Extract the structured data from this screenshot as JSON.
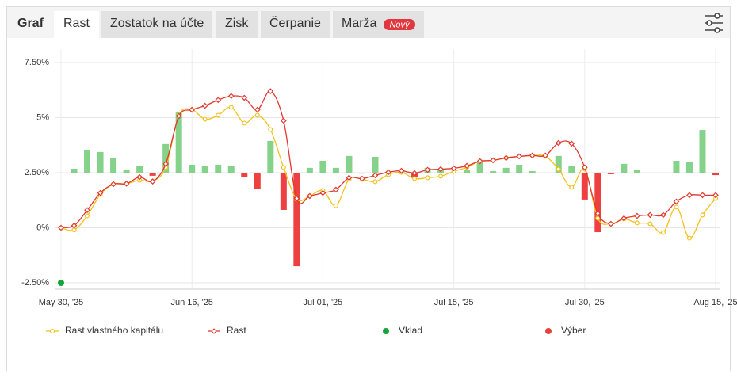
{
  "tabs": [
    "Graf",
    "Rast",
    "Zostatok na účte",
    "Zisk",
    "Čerpanie",
    "Marža"
  ],
  "badge": "Nový",
  "chart_data": {
    "type": "line",
    "categories": [
      "May 30, '25",
      null,
      null,
      null,
      null,
      null,
      null,
      null,
      null,
      null,
      "Jun 16, '25",
      null,
      null,
      null,
      null,
      null,
      null,
      null,
      null,
      null,
      "Jul 01, '25",
      null,
      null,
      null,
      null,
      null,
      null,
      null,
      null,
      null,
      "Jul 15, '25",
      null,
      null,
      null,
      null,
      null,
      null,
      null,
      null,
      null,
      "Jul 30, '25",
      null,
      null,
      null,
      null,
      null,
      null,
      null,
      null,
      null,
      "Aug 15, '25"
    ],
    "ylim": [
      -2.5,
      7.5
    ],
    "yticks": [
      {
        "value": -2.5,
        "label": "-2.50%"
      },
      {
        "value": 0,
        "label": "0%"
      },
      {
        "value": 2.5,
        "label": "2.50%"
      },
      {
        "value": 5,
        "label": "5%"
      },
      {
        "value": 7.5,
        "label": "7.50%"
      }
    ],
    "y2lim": [
      -5,
      5
    ],
    "grid": true,
    "series": [
      {
        "name": "Rast vlastného kapitálu",
        "color": "#f2c21b",
        "marker": "circle",
        "values": [
          0,
          -0.1,
          0.54,
          1.51,
          1.98,
          2.0,
          2.16,
          2.12,
          2.74,
          5.11,
          5.36,
          4.93,
          5.11,
          5.47,
          4.75,
          5.11,
          4.46,
          2.74,
          1.3,
          1.44,
          1.69,
          1.0,
          2.2,
          2.2,
          2.09,
          2.41,
          2.52,
          2.23,
          2.27,
          2.34,
          2.56,
          2.74,
          3.02,
          3.06,
          3.17,
          3.24,
          3.28,
          3.24,
          2.66,
          1.84,
          2.66,
          0.43,
          0.18,
          0.4,
          0.22,
          0.18,
          -0.22,
          0.94,
          -0.47,
          0.58,
          1.33
        ]
      },
      {
        "name": "Rast",
        "color": "#e0382f",
        "marker": "diamond",
        "values": [
          0,
          0.1,
          0.8,
          1.58,
          1.98,
          2.0,
          2.3,
          2.1,
          2.9,
          5.07,
          5.36,
          5.54,
          5.8,
          5.98,
          5.9,
          5.36,
          6.2,
          4.86,
          1.33,
          1.44,
          1.58,
          1.73,
          2.27,
          2.23,
          2.38,
          2.52,
          2.59,
          2.48,
          2.63,
          2.66,
          2.7,
          2.81,
          3.02,
          3.06,
          3.17,
          3.24,
          3.28,
          3.28,
          3.85,
          3.82,
          2.74,
          0.65,
          0.18,
          0.43,
          0.54,
          0.58,
          0.58,
          1.19,
          1.48,
          1.48,
          1.48
        ]
      },
      {
        "name": "Vklad",
        "color": "#13a538",
        "marker": "dot",
        "values": [
          -2.5,
          null,
          null,
          null,
          null,
          null,
          null,
          null,
          null,
          null,
          null,
          null,
          null,
          null,
          null,
          null,
          null,
          null,
          null,
          null,
          null,
          null,
          null,
          null,
          null,
          null,
          null,
          null,
          null,
          null,
          null,
          null,
          null,
          null,
          null,
          null,
          null,
          null,
          null,
          null,
          null,
          null,
          null,
          null,
          null,
          null,
          null,
          null,
          null,
          null,
          null
        ]
      },
      {
        "name": "Výber",
        "color": "#e8413a",
        "marker": "dot",
        "values": [
          null,
          null,
          null,
          null,
          null,
          null,
          null,
          null,
          null,
          null,
          null,
          null,
          null,
          null,
          null,
          null,
          null,
          null,
          null,
          null,
          null,
          null,
          null,
          null,
          null,
          null,
          null,
          null,
          null,
          null,
          null,
          null,
          null,
          null,
          null,
          null,
          null,
          null,
          null,
          null,
          null,
          null,
          null,
          null,
          null,
          null,
          null,
          null,
          null,
          null,
          null
        ]
      }
    ],
    "bars": {
      "axis": "y2",
      "positive_color": "#85d28a",
      "negative_color": "#ee4040",
      "values": [
        0,
        0.18,
        1.04,
        0.94,
        0.65,
        0.14,
        0.32,
        -0.14,
        1.3,
        2.74,
        0.36,
        0.29,
        0.36,
        0.29,
        -0.18,
        -0.72,
        1.44,
        -1.69,
        -4.25,
        0.22,
        0.54,
        0.22,
        0.76,
        -0.04,
        0.72,
        0.04,
        0.14,
        -0.18,
        0.22,
        0.14,
        0,
        0.14,
        0.5,
        0.07,
        0.22,
        0.36,
        0.07,
        0,
        0.76,
        0.29,
        -1.22,
        -2.7,
        -0.07,
        0.4,
        0.14,
        0,
        0,
        0.54,
        0.5,
        1.94,
        -0.11
      ]
    }
  }
}
